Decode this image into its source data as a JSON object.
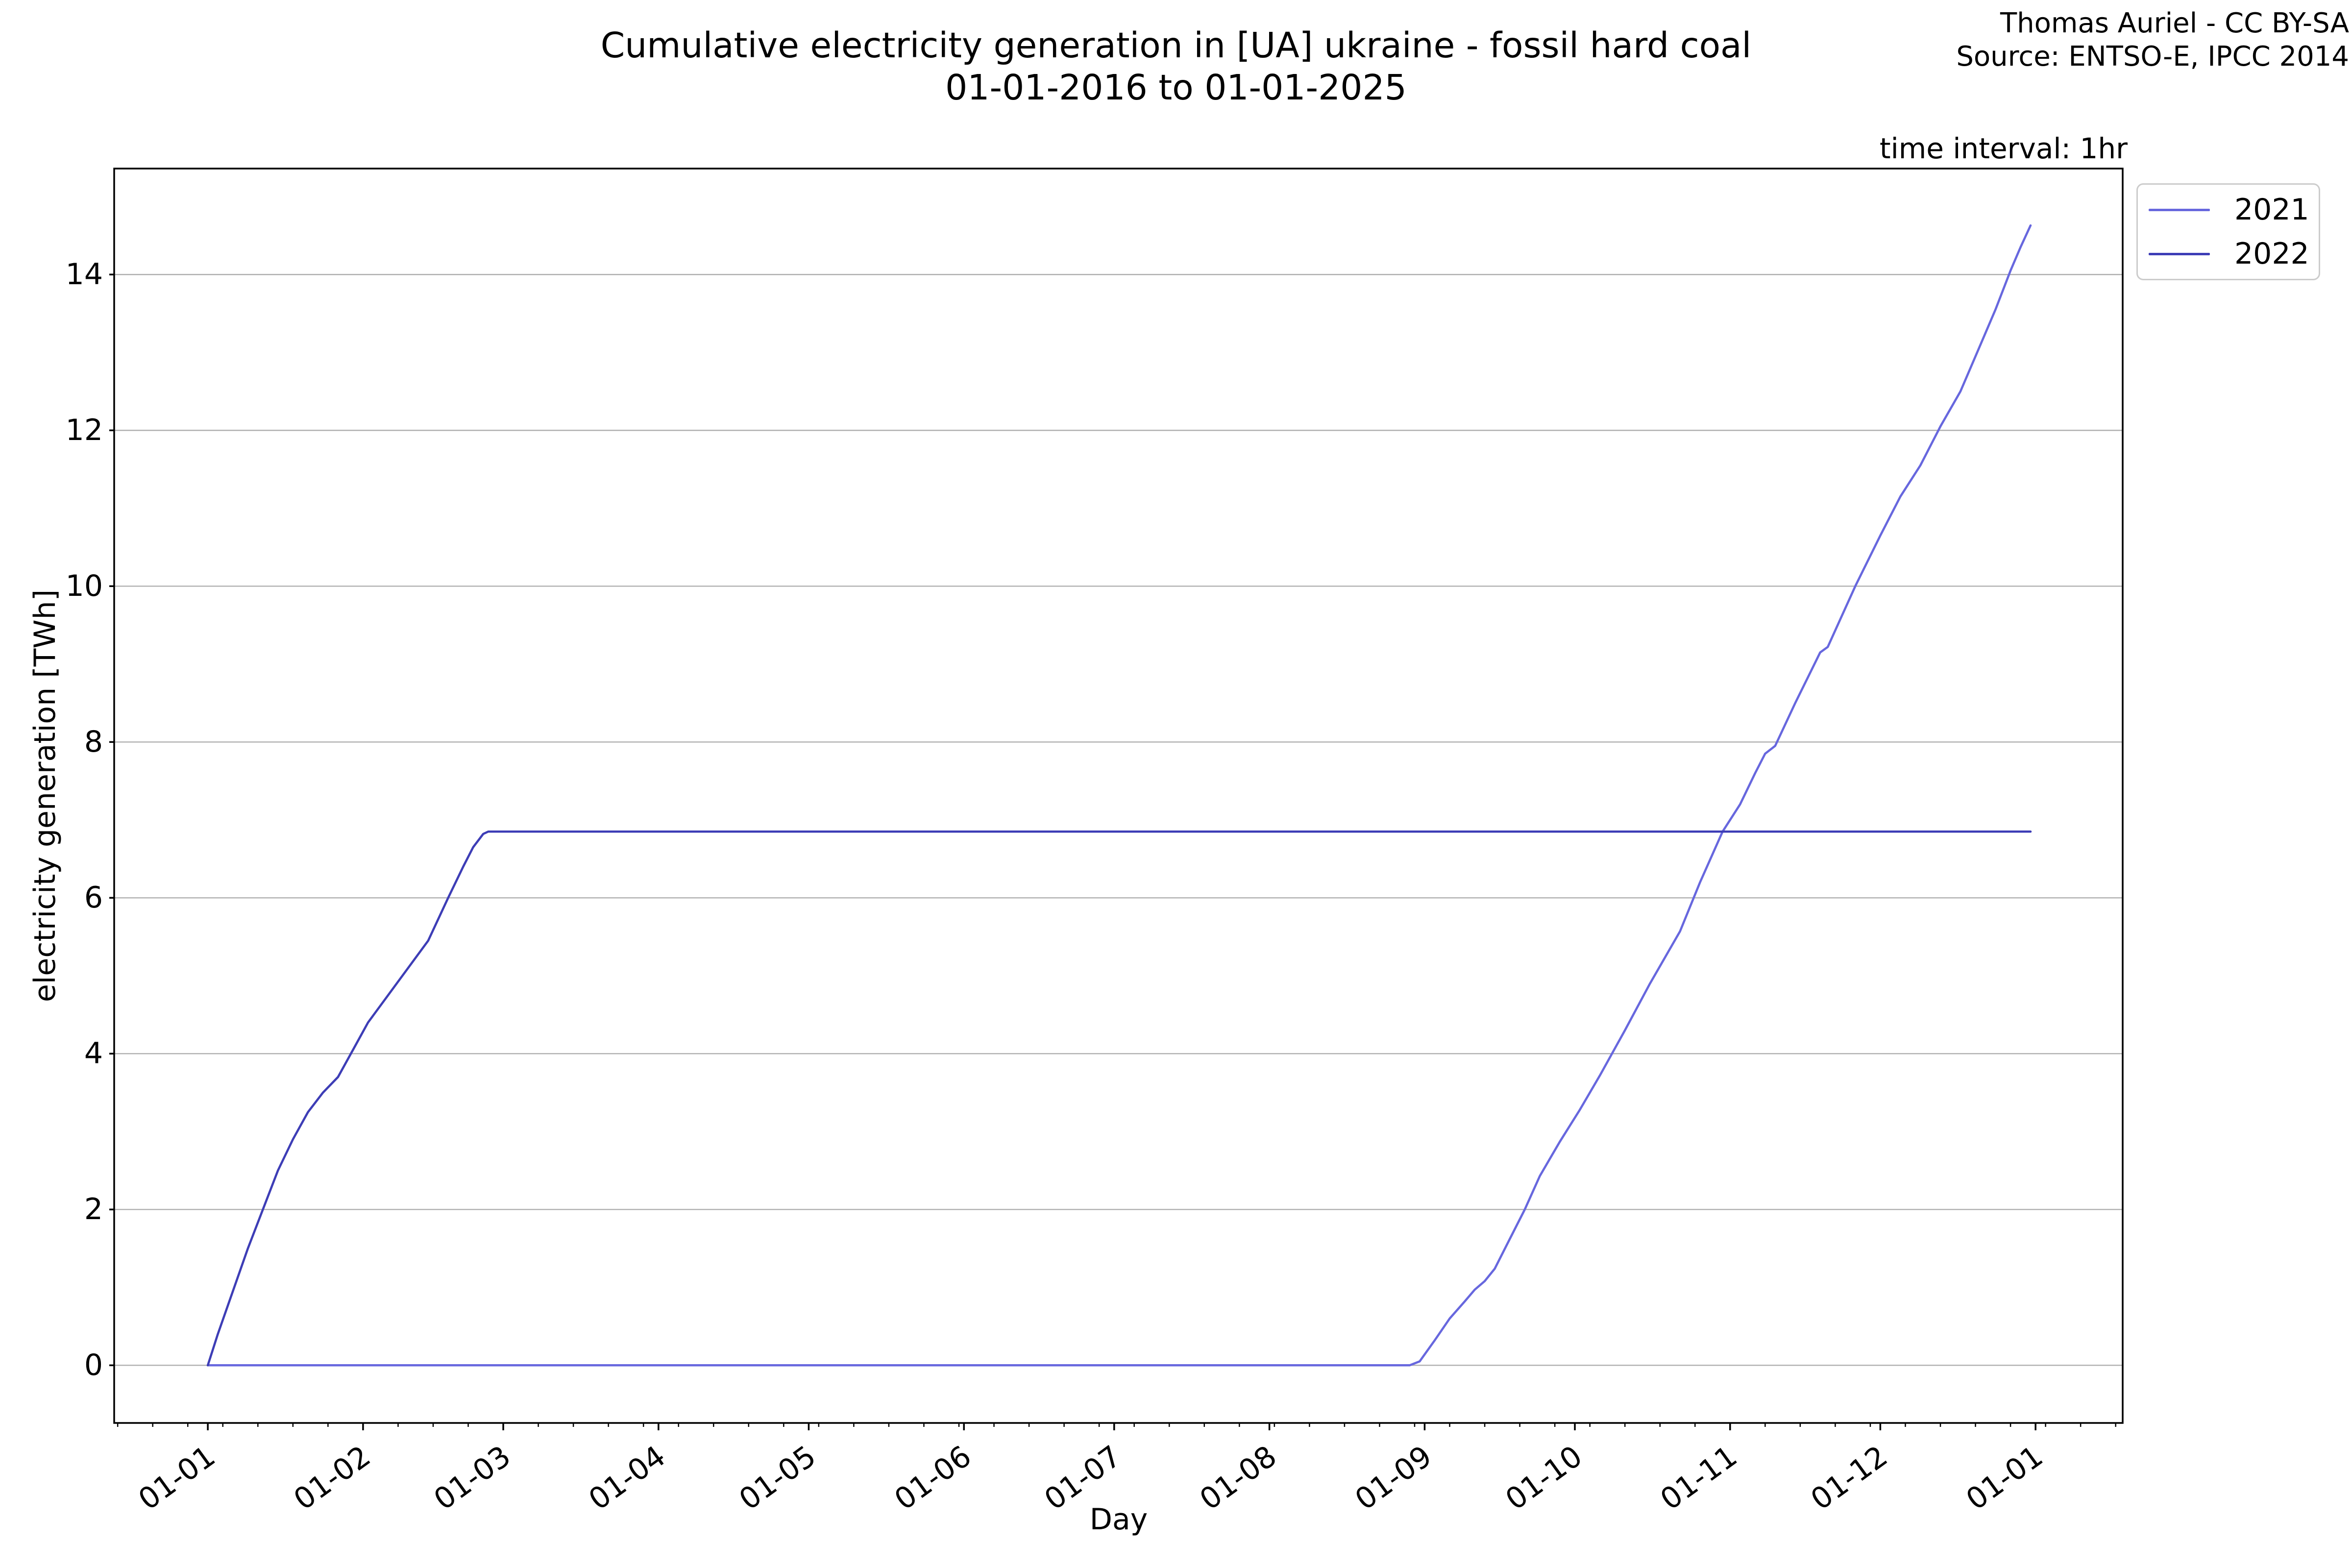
{
  "header": {
    "title_line1": "Cumulative electricity generation in [UA] ukraine - fossil hard coal",
    "title_line2": "01-01-2016 to 01-01-2025",
    "attribution_line1": "Thomas Auriel - CC BY-SA",
    "attribution_line2": "Source: ENTSO-E, IPCC 2014",
    "time_interval_label": "time interval: 1hr"
  },
  "chart_data": {
    "type": "line",
    "title": "Cumulative electricity generation in [UA] ukraine - fossil hard coal 01-01-2016 to 01-01-2025",
    "xlabel": "Day",
    "ylabel": "electricity generation [TWh]",
    "y_unit": "TWh",
    "x_tick_labels": [
      "01-01",
      "01-02",
      "01-03",
      "01-04",
      "01-05",
      "01-06",
      "01-07",
      "01-08",
      "01-09",
      "01-10",
      "01-11",
      "01-12",
      "01-01"
    ],
    "x_tick_days": [
      0,
      31,
      59,
      90,
      120,
      151,
      181,
      212,
      243,
      273,
      304,
      334,
      365
    ],
    "x_minor_ticks": {
      "start_day": -18,
      "step_days": 7,
      "end_day": 381
    },
    "y_ticks": [
      0,
      2,
      4,
      6,
      8,
      10,
      12,
      14
    ],
    "xlim_days": [
      -18.7,
      382.4
    ],
    "ylim": [
      -0.74,
      15.36
    ],
    "grid": "horizontal",
    "grid_color": "#b0b0b0",
    "axis_color": "#000000",
    "legend": {
      "position": "outside-upper-right",
      "entries": [
        "2021",
        "2022"
      ]
    },
    "series": [
      {
        "name": "2021",
        "color": "#6767de",
        "points": [
          [
            0,
            0
          ],
          [
            240,
            0
          ],
          [
            242,
            0.05
          ],
          [
            245,
            0.32
          ],
          [
            248,
            0.6
          ],
          [
            251,
            0.82
          ],
          [
            253,
            0.97
          ],
          [
            255,
            1.08
          ],
          [
            257,
            1.24
          ],
          [
            260,
            1.62
          ],
          [
            263,
            2.0
          ],
          [
            266,
            2.43
          ],
          [
            270,
            2.87
          ],
          [
            274,
            3.28
          ],
          [
            278,
            3.72
          ],
          [
            283,
            4.3
          ],
          [
            288,
            4.9
          ],
          [
            294,
            5.57
          ],
          [
            298,
            6.2
          ],
          [
            302.5,
            6.85
          ],
          [
            306,
            7.2
          ],
          [
            309,
            7.6
          ],
          [
            311,
            7.85
          ],
          [
            313,
            7.95
          ],
          [
            317,
            8.5
          ],
          [
            322,
            9.15
          ],
          [
            323.5,
            9.22
          ],
          [
            329,
            10.0
          ],
          [
            334,
            10.65
          ],
          [
            338,
            11.15
          ],
          [
            342,
            11.55
          ],
          [
            346,
            12.05
          ],
          [
            350,
            12.5
          ],
          [
            354,
            13.1
          ],
          [
            357,
            13.55
          ],
          [
            360,
            14.05
          ],
          [
            362,
            14.35
          ],
          [
            364,
            14.63
          ]
        ]
      },
      {
        "name": "2022",
        "color": "#3d3db6",
        "points": [
          [
            0,
            0
          ],
          [
            2,
            0.4
          ],
          [
            5,
            0.95
          ],
          [
            8,
            1.5
          ],
          [
            11,
            2.0
          ],
          [
            14,
            2.5
          ],
          [
            17,
            2.9
          ],
          [
            20,
            3.25
          ],
          [
            23,
            3.5
          ],
          [
            26,
            3.7
          ],
          [
            29,
            4.05
          ],
          [
            32,
            4.4
          ],
          [
            36,
            4.75
          ],
          [
            40,
            5.1
          ],
          [
            44,
            5.45
          ],
          [
            48,
            6.0
          ],
          [
            51,
            6.4
          ],
          [
            53,
            6.65
          ],
          [
            55,
            6.82
          ],
          [
            56,
            6.85
          ],
          [
            364,
            6.85
          ]
        ]
      }
    ]
  }
}
